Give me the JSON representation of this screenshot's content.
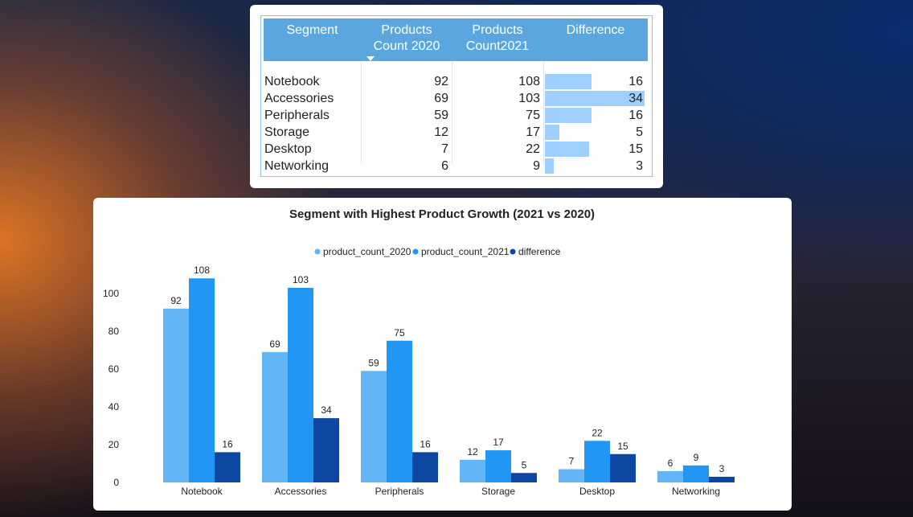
{
  "table": {
    "headers": [
      {
        "line1": "Segment",
        "line2": ""
      },
      {
        "line1": "Products",
        "line2": "Count 2020"
      },
      {
        "line1": "Products",
        "line2": "Count2021"
      },
      {
        "line1": "Difference",
        "line2": ""
      }
    ],
    "rows": [
      {
        "segment": "Notebook",
        "c2020": "92",
        "c2021": "108",
        "diff": "16"
      },
      {
        "segment": "Accessories",
        "c2020": "69",
        "c2021": "103",
        "diff": "34"
      },
      {
        "segment": "Peripherals",
        "c2020": "59",
        "c2021": "75",
        "diff": "16"
      },
      {
        "segment": "Storage",
        "c2020": "12",
        "c2021": "17",
        "diff": "5"
      },
      {
        "segment": "Desktop",
        "c2020": "7",
        "c2021": "22",
        "diff": "15"
      },
      {
        "segment": "Networking",
        "c2020": "6",
        "c2021": "9",
        "diff": "3"
      }
    ],
    "diff_bar_color": "#9fd0ff"
  },
  "chart_data": {
    "type": "bar",
    "title": "Segment with Highest Product Growth (2021 vs 2020)",
    "categories": [
      "Notebook",
      "Accessories",
      "Peripherals",
      "Storage",
      "Desktop",
      "Networking"
    ],
    "series": [
      {
        "name": "product_count_2020",
        "values": [
          92,
          69,
          59,
          12,
          7,
          6
        ],
        "color": "#64b5f6"
      },
      {
        "name": "product_count_2021",
        "values": [
          108,
          103,
          75,
          17,
          22,
          9
        ],
        "color": "#2196f3"
      },
      {
        "name": "difference",
        "values": [
          16,
          34,
          16,
          5,
          15,
          3
        ],
        "color": "#0d47a1"
      }
    ],
    "yticks": [
      0,
      20,
      40,
      60,
      80,
      100
    ],
    "ylim": [
      0,
      100
    ],
    "legend_position": "top-center",
    "grid": false,
    "data_labels": true
  }
}
